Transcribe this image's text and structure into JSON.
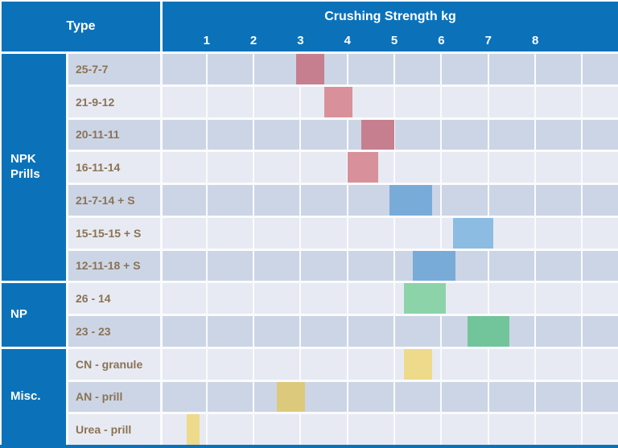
{
  "header": {
    "type_label": "Type",
    "axis_title": "Crushing Strength kg"
  },
  "groups": [
    {
      "label": "NPK Prills",
      "row_count": 7
    },
    {
      "label": "NP",
      "row_count": 2
    },
    {
      "label": "Misc.",
      "row_count": 3
    }
  ],
  "colors": {
    "header_blue": "#0b72ba",
    "row_band_dark": "#ccd5e5",
    "row_band_light": "#e7eaf2",
    "gridline_white": "#fafbfd",
    "row_label_brown": "#8a7355",
    "bar_red_dark_row": "#c67f8e",
    "bar_red_light_row": "#d8919a",
    "bar_blue_dark_row": "#78abd8",
    "bar_blue_light_row": "#8cbce1",
    "bar_green_light_row": "#8dd3aa",
    "bar_green_dark_row": "#72c49b",
    "bar_yellow_light_row": "#eeda8b",
    "bar_yellow_dark_row": "#ddc97c"
  },
  "chart_data": {
    "type": "bar",
    "subtype": "floating-range-bar",
    "title": "Crushing Strength kg",
    "xlabel": "Crushing Strength kg",
    "ylabel": "Type",
    "xlim": [
      0,
      9.7
    ],
    "tick_values": [
      1,
      2,
      3,
      4,
      5,
      6,
      7,
      8
    ],
    "gridline_values": [
      1,
      2,
      3,
      4,
      5,
      6,
      7,
      8,
      9
    ],
    "grid": true,
    "rows": [
      {
        "group": "NPK Prills",
        "label": "25-7-7",
        "range_kg": [
          2.9,
          3.5
        ],
        "color": "#c67f8e",
        "band": "dark"
      },
      {
        "group": "NPK Prills",
        "label": "21-9-12",
        "range_kg": [
          3.5,
          4.1
        ],
        "color": "#d8919a",
        "band": "light"
      },
      {
        "group": "NPK Prills",
        "label": "20-11-11",
        "range_kg": [
          4.3,
          5.0
        ],
        "color": "#c67f8e",
        "band": "dark"
      },
      {
        "group": "NPK Prills",
        "label": "16-11-14",
        "range_kg": [
          4.0,
          4.65
        ],
        "color": "#d8919a",
        "band": "light"
      },
      {
        "group": "NPK Prills",
        "label": "21-7-14 + S",
        "range_kg": [
          4.9,
          5.8
        ],
        "color": "#78abd8",
        "band": "dark"
      },
      {
        "group": "NPK Prills",
        "label": "15-15-15 + S",
        "range_kg": [
          6.25,
          7.1
        ],
        "color": "#8cbce1",
        "band": "light"
      },
      {
        "group": "NPK Prills",
        "label": "12-11-18 + S",
        "range_kg": [
          5.4,
          6.3
        ],
        "color": "#78abd8",
        "band": "dark"
      },
      {
        "group": "NP",
        "label": "26 - 14",
        "range_kg": [
          5.2,
          6.1
        ],
        "color": "#8dd3aa",
        "band": "light"
      },
      {
        "group": "NP",
        "label": "23 - 23",
        "range_kg": [
          6.55,
          7.45
        ],
        "color": "#72c49b",
        "band": "dark"
      },
      {
        "group": "Misc.",
        "label": "CN - granule",
        "range_kg": [
          5.2,
          5.8
        ],
        "color": "#eeda8b",
        "band": "light"
      },
      {
        "group": "Misc.",
        "label": "AN - prill",
        "range_kg": [
          2.5,
          3.1
        ],
        "color": "#ddc97c",
        "band": "dark"
      },
      {
        "group": "Misc.",
        "label": "Urea - prill",
        "range_kg": [
          0.57,
          0.85
        ],
        "color": "#eeda8b",
        "band": "light"
      }
    ]
  }
}
